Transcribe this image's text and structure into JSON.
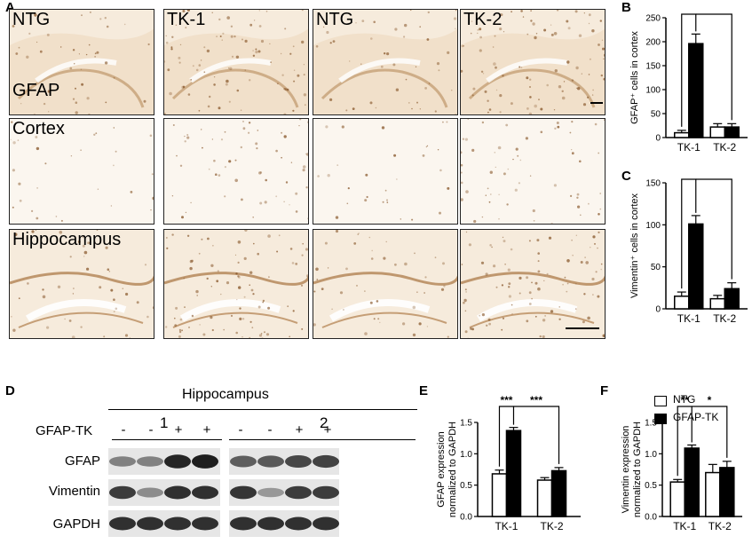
{
  "panels": {
    "A": "A",
    "B": "B",
    "C": "C",
    "D": "D",
    "E": "E",
    "F": "F"
  },
  "micrographs": {
    "row1": [
      {
        "label": "NTG"
      },
      {
        "label": "TK-1"
      },
      {
        "label": "NTG"
      },
      {
        "label": "TK-2"
      }
    ],
    "row1_extra_label": "GFAP",
    "row2_label": "Cortex",
    "row3_label": "Hippocampus"
  },
  "blot": {
    "title": "Hippocampus",
    "group1": "1",
    "group2": "2",
    "gfaptk_label": "GFAP-TK",
    "signs": [
      "-",
      "-",
      "+",
      "+",
      "-",
      "-",
      "+",
      "+"
    ],
    "rows": [
      "GFAP",
      "Vimentin",
      "GAPDH"
    ]
  },
  "legend": {
    "items": [
      {
        "label": "NTG",
        "fill": "#ffffff"
      },
      {
        "label": "GFAP-TK",
        "fill": "#000000"
      }
    ]
  },
  "chart_data": [
    {
      "id": "B",
      "type": "bar",
      "categories": [
        "TK-1",
        "TK-2"
      ],
      "series": [
        {
          "name": "NTG",
          "values": [
            10,
            22
          ],
          "err": [
            5,
            7
          ]
        },
        {
          "name": "GFAP-TK",
          "values": [
            196,
            22
          ],
          "err": [
            20,
            7
          ]
        }
      ],
      "ylabel": "GFAP⁺ cells in cortex",
      "ylim": [
        0,
        250
      ],
      "yticks": [
        0,
        50,
        100,
        150,
        200,
        250
      ],
      "sig": [
        {
          "text": "***"
        },
        {
          "text": "***"
        }
      ]
    },
    {
      "id": "C",
      "type": "bar",
      "categories": [
        "TK-1",
        "TK-2"
      ],
      "series": [
        {
          "name": "NTG",
          "values": [
            15,
            12
          ],
          "err": [
            5,
            4
          ]
        },
        {
          "name": "GFAP-TK",
          "values": [
            101,
            24
          ],
          "err": [
            10,
            7
          ]
        }
      ],
      "ylabel": "Vimentin⁺ cells in cortex",
      "ylim": [
        0,
        150
      ],
      "yticks": [
        0,
        50,
        100,
        150
      ],
      "sig": [
        {
          "text": "***"
        },
        {
          "text": "***"
        }
      ]
    },
    {
      "id": "E",
      "type": "bar",
      "categories": [
        "TK-1",
        "TK-2"
      ],
      "series": [
        {
          "name": "NTG",
          "values": [
            0.68,
            0.58
          ],
          "err": [
            0.06,
            0.04
          ]
        },
        {
          "name": "GFAP-TK",
          "values": [
            1.37,
            0.73
          ],
          "err": [
            0.05,
            0.05
          ]
        }
      ],
      "ylabel": "GFAP expression normalized to GAPDH",
      "ylim": [
        0,
        1.5
      ],
      "yticks": [
        "0.0",
        "0.5",
        "1.0",
        "1.5"
      ],
      "sig": [
        {
          "text": "***"
        },
        {
          "text": "***"
        }
      ]
    },
    {
      "id": "F",
      "type": "bar",
      "categories": [
        "TK-1",
        "TK-2"
      ],
      "series": [
        {
          "name": "NTG",
          "values": [
            0.55,
            0.7
          ],
          "err": [
            0.04,
            0.13
          ]
        },
        {
          "name": "GFAP-TK",
          "values": [
            1.09,
            0.78
          ],
          "err": [
            0.05,
            0.1
          ]
        }
      ],
      "ylabel": "Vimentin expression normalized to GAPDH",
      "ylim": [
        0,
        1.5
      ],
      "yticks": [
        "0.0",
        "0.5",
        "1.0",
        "1.5"
      ],
      "sig": [
        {
          "text": "**"
        },
        {
          "text": "*"
        }
      ]
    }
  ]
}
